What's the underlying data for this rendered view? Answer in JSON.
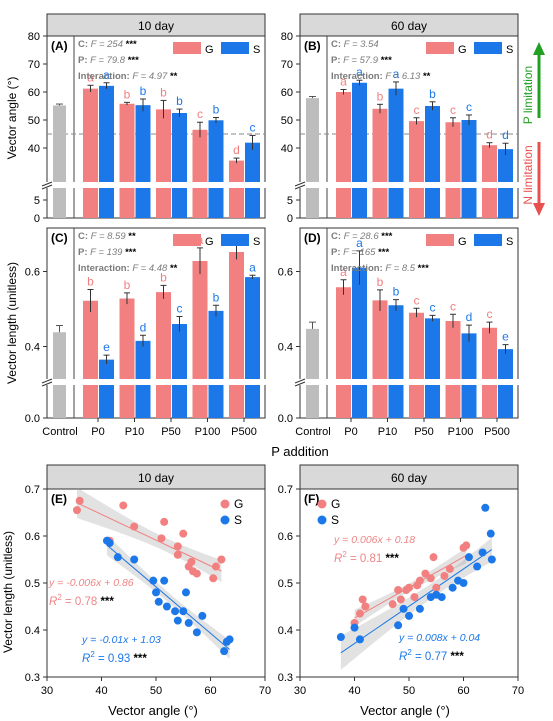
{
  "colors": {
    "G": "#f28080",
    "S": "#1c78e8",
    "control": "#bdbdbd",
    "strip": "#d9d9d9",
    "green": "#21a021",
    "red": "#e8504f",
    "eqG": "#ef8585",
    "eqS": "#1c78e8"
  },
  "chart_data": [
    {
      "id": "A",
      "type": "bar",
      "panel_label": "(A)",
      "strip": "10 day",
      "ylabel": "Vector angle (°)",
      "yticks_upper": [
        "40",
        "50",
        "60",
        "70",
        "80"
      ],
      "yticks_lower": [
        "0",
        "5"
      ],
      "legend": [
        "G",
        "S"
      ],
      "stats": [
        {
          "lead": "C: ",
          "f": "F = 254",
          "sig": "***"
        },
        {
          "lead": "P: ",
          "f": "F = 79.8",
          "sig": "***"
        },
        {
          "lead": "Interaction: ",
          "f": "F = 4.97",
          "sig": "**"
        }
      ],
      "control": {
        "value": 55.2,
        "err": 0.5
      },
      "categories": [
        "P0",
        "P10",
        "P50",
        "P100",
        "P500"
      ],
      "series": [
        {
          "name": "G",
          "values": [
            61.2,
            55.8,
            53.8,
            46.5,
            35.5
          ],
          "errors": [
            1.2,
            0.5,
            3.2,
            2.7,
            0.9
          ],
          "letters": [
            "a",
            "b",
            "b",
            "c",
            "d"
          ]
        },
        {
          "name": "S",
          "values": [
            62.2,
            55.3,
            52.5,
            49.9,
            41.9
          ],
          "errors": [
            1.1,
            2.2,
            1.4,
            1.0,
            2.6
          ],
          "letters": [
            "a",
            "b",
            "b",
            "b",
            "c"
          ]
        }
      ],
      "ref_line": 45
    },
    {
      "id": "B",
      "type": "bar",
      "panel_label": "(B)",
      "strip": "60 day",
      "legend": [
        "G",
        "S"
      ],
      "stats": [
        {
          "lead": "C: ",
          "f": "F = 3.54",
          "sig": ""
        },
        {
          "lead": "P: ",
          "f": "F = 57.9",
          "sig": "***"
        },
        {
          "lead": "Interaction: ",
          "f": "F = 6.13",
          "sig": "**"
        }
      ],
      "control": {
        "value": 57.8,
        "err": 0.6
      },
      "categories": [
        "P0",
        "P10",
        "P50",
        "P100",
        "P500"
      ],
      "series": [
        {
          "name": "G",
          "values": [
            60.0,
            54.0,
            49.6,
            49.2,
            41.0
          ],
          "errors": [
            0.9,
            1.6,
            1.2,
            1.6,
            0.9
          ],
          "letters": [
            "a",
            "b",
            "c",
            "c",
            "d"
          ]
        },
        {
          "name": "S",
          "values": [
            63.3,
            61.2,
            55.0,
            50.0,
            39.6
          ],
          "errors": [
            0.9,
            2.4,
            1.5,
            1.8,
            2.1
          ],
          "letters": [
            "a",
            "a",
            "b",
            "c",
            "d"
          ]
        }
      ],
      "ref_line": 45,
      "side_labels": {
        "top": "P limitation",
        "bottom": "N limitation"
      }
    },
    {
      "id": "C",
      "type": "bar",
      "panel_label": "(C)",
      "ylabel": "Vector length (unitless)",
      "yticks_upper": [
        "0.4",
        "0.6"
      ],
      "yticks_lower": [
        "0.0"
      ],
      "legend": [
        "G",
        "S"
      ],
      "stats": [
        {
          "lead": "C: ",
          "f": "F = 8.59",
          "sig": "**"
        },
        {
          "lead": "P: ",
          "f": "F = 139",
          "sig": "***"
        },
        {
          "lead": "Interaction: ",
          "f": "F = 4.48",
          "sig": "**"
        }
      ],
      "control": {
        "value": 0.438,
        "err": 0.018
      },
      "categories": [
        "P0",
        "P10",
        "P50",
        "P100",
        "P500"
      ],
      "series": [
        {
          "name": "G",
          "values": [
            0.522,
            0.528,
            0.545,
            0.628,
            0.652
          ],
          "errors": [
            0.03,
            0.015,
            0.018,
            0.035,
            0.02
          ],
          "letters": [
            "b",
            "b",
            "b",
            "a",
            "a"
          ]
        },
        {
          "name": "S",
          "values": [
            0.365,
            0.415,
            0.46,
            0.495,
            0.585
          ],
          "errors": [
            0.012,
            0.015,
            0.02,
            0.015,
            0.005
          ],
          "letters": [
            "e",
            "d",
            "c",
            "b",
            "a"
          ]
        }
      ]
    },
    {
      "id": "D",
      "type": "bar",
      "panel_label": "(D)",
      "legend": [
        "G",
        "S"
      ],
      "stats": [
        {
          "lead": "C: ",
          "f": "F = 28.6",
          "sig": "***"
        },
        {
          "lead": "P: ",
          "f": "F = 165",
          "sig": "***"
        },
        {
          "lead": "Interaction: ",
          "f": "F = 8.5",
          "sig": "***"
        }
      ],
      "control": {
        "value": 0.447,
        "err": 0.018
      },
      "categories": [
        "P0",
        "P10",
        "P50",
        "P100",
        "P500"
      ],
      "series": [
        {
          "name": "G",
          "values": [
            0.558,
            0.523,
            0.49,
            0.468,
            0.45
          ],
          "errors": [
            0.02,
            0.028,
            0.012,
            0.018,
            0.015
          ],
          "letters": [
            "a",
            "b",
            "c",
            "c",
            "c"
          ]
        },
        {
          "name": "S",
          "values": [
            0.61,
            0.51,
            0.475,
            0.435,
            0.393
          ],
          "errors": [
            0.045,
            0.015,
            0.008,
            0.022,
            0.012
          ],
          "letters": [
            "a",
            "b",
            "c",
            "d",
            "e"
          ]
        }
      ]
    },
    {
      "id": "E",
      "type": "scatter",
      "panel_label": "(E)",
      "strip": "10 day",
      "xlabel": "Vector angle (°)",
      "ylabel": "Vector length (unitless)",
      "xlim": [
        30,
        70
      ],
      "ylim": [
        0.3,
        0.7
      ],
      "xticks": [
        "30",
        "40",
        "50",
        "60",
        "70"
      ],
      "yticks": [
        "0.3",
        "0.4",
        "0.5",
        "0.6",
        "0.7"
      ],
      "series": [
        {
          "name": "G",
          "points": [
            [
              35.5,
              0.655
            ],
            [
              36,
              0.675
            ],
            [
              41.5,
              0.59
            ],
            [
              44,
              0.665
            ],
            [
              46,
              0.62
            ],
            [
              51,
              0.595
            ],
            [
              51.5,
              0.63
            ],
            [
              54,
              0.56
            ],
            [
              55,
              0.605
            ],
            [
              56,
              0.535
            ],
            [
              56.5,
              0.545
            ],
            [
              56.8,
              0.525
            ],
            [
              57.5,
              0.52
            ],
            [
              60.5,
              0.51
            ],
            [
              61,
              0.535
            ],
            [
              62,
              0.55
            ],
            [
              54,
              0.578
            ]
          ],
          "eq": "y = -0.006x + 0.86",
          "r2_lead": "R",
          "r2_val": "= 0.78",
          "sig": "***"
        },
        {
          "name": "S",
          "points": [
            [
              41,
              0.59
            ],
            [
              41.5,
              0.585
            ],
            [
              43,
              0.555
            ],
            [
              46,
              0.55
            ],
            [
              49.5,
              0.505
            ],
            [
              50,
              0.48
            ],
            [
              50.5,
              0.46
            ],
            [
              51.5,
              0.505
            ],
            [
              52,
              0.45
            ],
            [
              53.5,
              0.44
            ],
            [
              54,
              0.42
            ],
            [
              55,
              0.44
            ],
            [
              55.5,
              0.48
            ],
            [
              56,
              0.415
            ],
            [
              57.5,
              0.395
            ],
            [
              58.5,
              0.43
            ],
            [
              62.5,
              0.355
            ],
            [
              63,
              0.375
            ],
            [
              63.5,
              0.38
            ]
          ],
          "eq": "y = -0.01x + 1.03",
          "r2_lead": "R",
          "r2_val": "= 0.93",
          "sig": "***"
        }
      ]
    },
    {
      "id": "F",
      "type": "scatter",
      "panel_label": "(F)",
      "strip": "60 day",
      "xlabel": "Vector angle (°)",
      "xlim": [
        30,
        70
      ],
      "ylim": [
        0.3,
        0.7
      ],
      "xticks": [
        "30",
        "40",
        "50",
        "60",
        "70"
      ],
      "yticks": [
        "0.3",
        "0.4",
        "0.5",
        "0.6",
        "0.7"
      ],
      "series": [
        {
          "name": "G",
          "points": [
            [
              40,
              0.415
            ],
            [
              41,
              0.435
            ],
            [
              41.5,
              0.465
            ],
            [
              42,
              0.45
            ],
            [
              47,
              0.455
            ],
            [
              48,
              0.485
            ],
            [
              48.5,
              0.465
            ],
            [
              49.5,
              0.485
            ],
            [
              50,
              0.49
            ],
            [
              51,
              0.47
            ],
            [
              51.5,
              0.495
            ],
            [
              52,
              0.505
            ],
            [
              53,
              0.52
            ],
            [
              54,
              0.51
            ],
            [
              55,
              0.49
            ],
            [
              56.5,
              0.515
            ],
            [
              57.5,
              0.53
            ],
            [
              60,
              0.575
            ],
            [
              60.5,
              0.58
            ],
            [
              54.5,
              0.555
            ]
          ],
          "eq": "y = 0.006x + 0.18",
          "r2_lead": "R",
          "r2_val": "= 0.81",
          "sig": "***"
        },
        {
          "name": "S",
          "points": [
            [
              37.5,
              0.385
            ],
            [
              40,
              0.405
            ],
            [
              41,
              0.38
            ],
            [
              48,
              0.41
            ],
            [
              49,
              0.445
            ],
            [
              50,
              0.43
            ],
            [
              52,
              0.445
            ],
            [
              54,
              0.47
            ],
            [
              55,
              0.475
            ],
            [
              56,
              0.47
            ],
            [
              58,
              0.49
            ],
            [
              59,
              0.505
            ],
            [
              60,
              0.5
            ],
            [
              61,
              0.555
            ],
            [
              62.5,
              0.535
            ],
            [
              63.5,
              0.565
            ],
            [
              64,
              0.66
            ],
            [
              65,
              0.605
            ],
            [
              65.2,
              0.55
            ]
          ],
          "eq": "y = 0.008x + 0.04",
          "r2_lead": "R",
          "r2_val": "= 0.77",
          "sig": "***"
        }
      ]
    }
  ],
  "shared": {
    "bar_xlabel": "P addition",
    "control_label": "Control",
    "legend_G": "G",
    "legend_S": "S",
    "r2_sup": "2"
  }
}
